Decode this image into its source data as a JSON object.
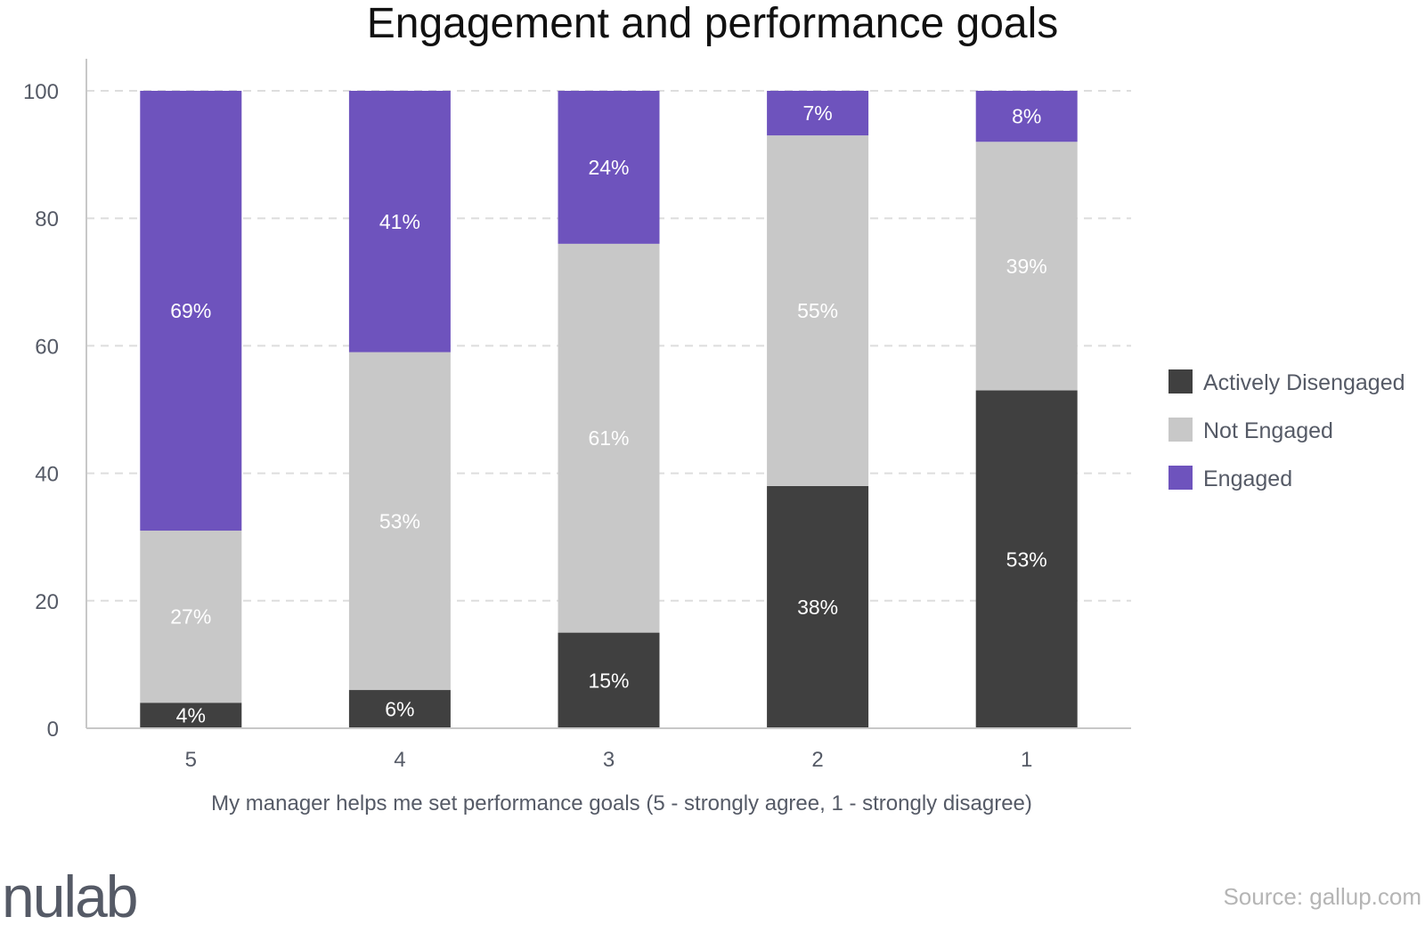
{
  "chart_data": {
    "type": "bar",
    "stacked": true,
    "title": "Engagement and performance goals",
    "xlabel": "My manager helps me set performance goals (5 - strongly agree, 1 - strongly disagree)",
    "ylabel": "",
    "categories": [
      "5",
      "4",
      "3",
      "2",
      "1"
    ],
    "ylim": [
      0,
      100
    ],
    "yticks": [
      0,
      20,
      40,
      60,
      80,
      100
    ],
    "grid": true,
    "legend_position": "right",
    "series": [
      {
        "name": "Actively Disengaged",
        "color": "#404040",
        "values": [
          4,
          6,
          15,
          38,
          53
        ],
        "labels": [
          "4%",
          "6%",
          "15%",
          "38%",
          "53%"
        ]
      },
      {
        "name": "Not Engaged",
        "color": "#c8c8c8",
        "values": [
          27,
          53,
          61,
          55,
          39
        ],
        "labels": [
          "27%",
          "53%",
          "61%",
          "55%",
          "39%"
        ]
      },
      {
        "name": "Engaged",
        "color": "#6e53bd",
        "values": [
          69,
          41,
          24,
          7,
          8
        ],
        "labels": [
          "69%",
          "41%",
          "24%",
          "7%",
          "8%"
        ]
      }
    ]
  },
  "footer": {
    "logo": "nulab",
    "source": "Source: gallup.com"
  }
}
